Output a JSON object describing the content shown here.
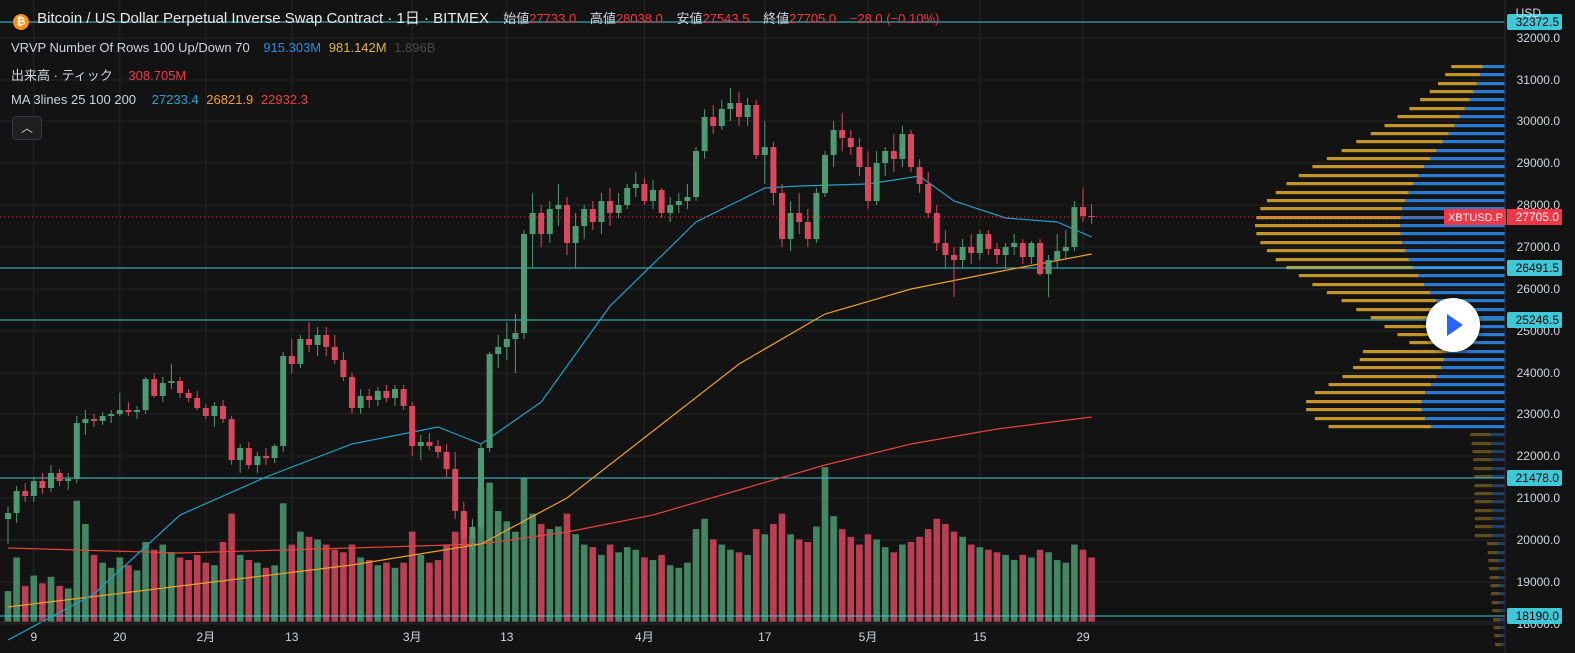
{
  "header": {
    "title": "Bitcoin / US Dollar Perpetual Inverse Swap Contract · 1日 · BITMEX",
    "open_label": "始値",
    "open": "27733.0",
    "high_label": "高値",
    "high": "28038.0",
    "low_label": "安値",
    "low": "27543.5",
    "close_label": "終値",
    "close": "27705.0",
    "change": "−28.0 (−0.10%)"
  },
  "indicators": {
    "vrvp": {
      "name": "VRVP Number Of Rows 100 Up/Down 70",
      "v1": "915.303M",
      "v2": "981.142M",
      "v3": "1.896B"
    },
    "volume": {
      "name": "出来高 · ティック",
      "value": "308.705M"
    },
    "ma": {
      "name": "MA 3lines 25 100 200",
      "v25": "27233.4",
      "v100": "26821.9",
      "v200": "22932.3"
    }
  },
  "axis": {
    "currency": "USD",
    "price_ticks": [
      "32000.0",
      "31000.0",
      "30000.0",
      "29000.0",
      "28000.0",
      "27000.0",
      "26000.0",
      "25000.0",
      "24000.0",
      "23000.0",
      "22000.0",
      "21000.0",
      "20000.0",
      "19000.0",
      "18000.0"
    ],
    "time_ticks": [
      "9",
      "20",
      "2月",
      "13",
      "3月",
      "13",
      "4月",
      "17",
      "5月",
      "15",
      "29"
    ],
    "current_price_symbol": "XBTUSD.P",
    "current_price": "27705.0",
    "horizontal_lines": [
      "32372.5",
      "26491.5",
      "25246.5",
      "21478.0",
      "18190.0"
    ]
  },
  "colors": {
    "up": "#4e9a72",
    "down": "#d9485e",
    "ma25": "#1fa2c9",
    "ma100": "#f0a02c",
    "ma200": "#e8433a",
    "hline": "#3fc8d8",
    "vpUp": "#2a7bd4",
    "vpDown": "#c4962a"
  },
  "chart_data": {
    "type": "candlestick",
    "title": "Bitcoin / US Dollar Perpetual Inverse Swap Contract · 1日 · BITMEX",
    "ylabel": "USD",
    "ylim": [
      17300,
      32900
    ],
    "horizontal_lines": [
      32372.5,
      26491.5,
      25246.5,
      21478.0,
      18190.0
    ],
    "x_ticks": [
      "9",
      "20",
      "2月",
      "13",
      "3月",
      "13",
      "4月",
      "17",
      "5月",
      "15",
      "29"
    ],
    "candles": [
      [
        20500,
        20800,
        19900,
        20650,
        120
      ],
      [
        20650,
        21300,
        20400,
        21180,
        250
      ],
      [
        21180,
        21350,
        20900,
        21050,
        140
      ],
      [
        21050,
        21500,
        20900,
        21400,
        180
      ],
      [
        21400,
        21600,
        21100,
        21250,
        150
      ],
      [
        21250,
        21800,
        21150,
        21600,
        175
      ],
      [
        21600,
        21700,
        21300,
        21400,
        140
      ],
      [
        21400,
        21600,
        21200,
        21450,
        130
      ],
      [
        21450,
        22950,
        21350,
        22800,
        470
      ],
      [
        22800,
        23100,
        22500,
        22900,
        380
      ],
      [
        22900,
        23000,
        22700,
        22850,
        260
      ],
      [
        22850,
        23050,
        22750,
        22950,
        230
      ],
      [
        22950,
        23100,
        22800,
        23000,
        210
      ],
      [
        23000,
        23500,
        22950,
        23100,
        250
      ],
      [
        23100,
        23300,
        22950,
        23050,
        220
      ],
      [
        23050,
        23200,
        22900,
        23100,
        200
      ],
      [
        23100,
        23900,
        23000,
        23850,
        310
      ],
      [
        23850,
        24000,
        23400,
        23450,
        280
      ],
      [
        23450,
        23900,
        23300,
        23750,
        300
      ],
      [
        23750,
        24200,
        23600,
        23800,
        270
      ],
      [
        23800,
        23900,
        23400,
        23500,
        250
      ],
      [
        23500,
        23600,
        23300,
        23400,
        240
      ],
      [
        23400,
        23550,
        23100,
        23150,
        260
      ],
      [
        23150,
        23250,
        22900,
        22950,
        230
      ],
      [
        22950,
        23300,
        22700,
        23200,
        220
      ],
      [
        23200,
        23350,
        22800,
        22900,
        310
      ],
      [
        22900,
        22950,
        21800,
        21900,
        420
      ],
      [
        21900,
        22300,
        21600,
        22200,
        260
      ],
      [
        22200,
        22350,
        21700,
        21800,
        240
      ],
      [
        21800,
        22100,
        21600,
        22000,
        230
      ],
      [
        22000,
        22200,
        21800,
        21950,
        210
      ],
      [
        21950,
        22300,
        21850,
        22250,
        220
      ],
      [
        22250,
        24500,
        22100,
        24400,
        460
      ],
      [
        24400,
        24800,
        24000,
        24200,
        300
      ],
      [
        24200,
        24900,
        24100,
        24800,
        350
      ],
      [
        24800,
        25200,
        24500,
        24650,
        330
      ],
      [
        24650,
        25100,
        24400,
        24900,
        320
      ],
      [
        24900,
        25100,
        24400,
        24600,
        300
      ],
      [
        24600,
        24900,
        24200,
        24300,
        280
      ],
      [
        24300,
        24500,
        23800,
        23900,
        270
      ],
      [
        23900,
        24000,
        23000,
        23150,
        300
      ],
      [
        23150,
        23600,
        23000,
        23450,
        250
      ],
      [
        23450,
        23600,
        23150,
        23350,
        240
      ],
      [
        23350,
        23650,
        23200,
        23550,
        220
      ],
      [
        23550,
        23700,
        23300,
        23400,
        230
      ],
      [
        23400,
        23700,
        23200,
        23600,
        210
      ],
      [
        23600,
        23700,
        23100,
        23200,
        230
      ],
      [
        23200,
        23300,
        22000,
        22250,
        350
      ],
      [
        22250,
        22500,
        21900,
        22350,
        260
      ],
      [
        22350,
        22550,
        22150,
        22250,
        230
      ],
      [
        22250,
        22400,
        21950,
        22100,
        240
      ],
      [
        22100,
        22300,
        21500,
        21700,
        300
      ],
      [
        21700,
        22100,
        20500,
        20700,
        350
      ],
      [
        20700,
        20900,
        19600,
        20050,
        400
      ],
      [
        20050,
        20500,
        19700,
        20300,
        330
      ],
      [
        20300,
        22300,
        20200,
        22200,
        520
      ],
      [
        22200,
        24500,
        22100,
        24450,
        540
      ],
      [
        24450,
        24900,
        24100,
        24600,
        430
      ],
      [
        24600,
        25200,
        24300,
        24800,
        390
      ],
      [
        24800,
        25400,
        24000,
        24950,
        350
      ],
      [
        24950,
        27400,
        24800,
        27300,
        560
      ],
      [
        27300,
        28300,
        26500,
        27800,
        420
      ],
      [
        27800,
        28000,
        27000,
        27300,
        380
      ],
      [
        27300,
        28100,
        27100,
        27900,
        360
      ],
      [
        27900,
        28500,
        27500,
        28000,
        370
      ],
      [
        28000,
        28200,
        26800,
        27100,
        420
      ],
      [
        27100,
        27800,
        26500,
        27500,
        340
      ],
      [
        27500,
        28000,
        27200,
        27900,
        300
      ],
      [
        27900,
        28100,
        27400,
        27600,
        290
      ],
      [
        27600,
        28300,
        27300,
        28100,
        260
      ],
      [
        28100,
        28400,
        27500,
        27800,
        300
      ],
      [
        27800,
        28300,
        27700,
        28000,
        270
      ],
      [
        28000,
        28500,
        27900,
        28400,
        290
      ],
      [
        28400,
        28800,
        28200,
        28500,
        280
      ],
      [
        28500,
        28650,
        28000,
        28100,
        250
      ],
      [
        28100,
        28600,
        27900,
        28350,
        240
      ],
      [
        28350,
        28400,
        27700,
        27800,
        260
      ],
      [
        27800,
        28200,
        27600,
        28000,
        220
      ],
      [
        28000,
        28300,
        27800,
        28100,
        210
      ],
      [
        28100,
        28500,
        27900,
        28200,
        230
      ],
      [
        28200,
        29400,
        28100,
        29300,
        360
      ],
      [
        29300,
        30300,
        29100,
        30100,
        400
      ],
      [
        30100,
        30400,
        29700,
        29900,
        320
      ],
      [
        29900,
        30500,
        29800,
        30300,
        300
      ],
      [
        30300,
        30800,
        30000,
        30450,
        280
      ],
      [
        30450,
        30700,
        29900,
        30100,
        270
      ],
      [
        30100,
        30550,
        29900,
        30400,
        260
      ],
      [
        30400,
        30500,
        29100,
        29200,
        360
      ],
      [
        29200,
        30000,
        28500,
        29400,
        340
      ],
      [
        29400,
        29500,
        28000,
        28300,
        380
      ],
      [
        28300,
        28500,
        27000,
        27200,
        420
      ],
      [
        27200,
        28100,
        26900,
        27800,
        340
      ],
      [
        27800,
        28300,
        27300,
        27600,
        320
      ],
      [
        27600,
        27900,
        27000,
        27200,
        310
      ],
      [
        27200,
        28400,
        27100,
        28300,
        370
      ],
      [
        28300,
        29300,
        28200,
        29200,
        600
      ],
      [
        29200,
        30000,
        28900,
        29800,
        410
      ],
      [
        29800,
        30200,
        29300,
        29600,
        360
      ],
      [
        29600,
        29800,
        29200,
        29400,
        330
      ],
      [
        29400,
        29600,
        28700,
        28900,
        300
      ],
      [
        28900,
        29300,
        27900,
        28100,
        340
      ],
      [
        28100,
        29300,
        28000,
        29000,
        320
      ],
      [
        29000,
        29400,
        28700,
        29300,
        290
      ],
      [
        29300,
        29700,
        28800,
        29100,
        270
      ],
      [
        29100,
        29900,
        28900,
        29700,
        300
      ],
      [
        29700,
        29800,
        28800,
        28900,
        310
      ],
      [
        28900,
        29100,
        28300,
        28500,
        330
      ],
      [
        28500,
        28800,
        27700,
        27800,
        360
      ],
      [
        27800,
        28000,
        26900,
        27100,
        400
      ],
      [
        27100,
        27400,
        26500,
        26800,
        380
      ],
      [
        26800,
        27000,
        25800,
        26700,
        350
      ],
      [
        26700,
        27200,
        26500,
        27000,
        330
      ],
      [
        27000,
        27300,
        26600,
        26850,
        300
      ],
      [
        26850,
        27400,
        26700,
        27300,
        290
      ],
      [
        27300,
        27400,
        26800,
        26950,
        280
      ],
      [
        26950,
        27100,
        26600,
        26800,
        270
      ],
      [
        26800,
        27100,
        26500,
        27000,
        260
      ],
      [
        27000,
        27300,
        26800,
        27100,
        240
      ],
      [
        27100,
        27200,
        26600,
        26750,
        260
      ],
      [
        26750,
        27150,
        26600,
        27100,
        250
      ],
      [
        27100,
        27200,
        26300,
        26350,
        280
      ],
      [
        26350,
        26800,
        25800,
        26700,
        270
      ],
      [
        26700,
        27300,
        26500,
        26900,
        240
      ],
      [
        26900,
        27400,
        26700,
        27000,
        230
      ],
      [
        27000,
        28100,
        26900,
        27950,
        300
      ],
      [
        27950,
        28400,
        27600,
        27733,
        280
      ],
      [
        27733,
        28038,
        27543.5,
        27705,
        250
      ]
    ],
    "ma25": [
      [
        0,
        17600
      ],
      [
        10,
        18700
      ],
      [
        20,
        20600
      ],
      [
        30,
        21500
      ],
      [
        40,
        22300
      ],
      [
        50,
        22700
      ],
      [
        55,
        22300
      ],
      [
        62,
        23300
      ],
      [
        70,
        25600
      ],
      [
        80,
        27600
      ],
      [
        88,
        28400
      ],
      [
        92,
        28450
      ],
      [
        100,
        28500
      ],
      [
        106,
        28700
      ],
      [
        110,
        28100
      ],
      [
        116,
        27700
      ],
      [
        122,
        27600
      ],
      [
        126,
        27233.4
      ]
    ],
    "ma100": [
      [
        0,
        18400
      ],
      [
        20,
        18900
      ],
      [
        40,
        19400
      ],
      [
        55,
        19900
      ],
      [
        65,
        21000
      ],
      [
        75,
        22600
      ],
      [
        85,
        24200
      ],
      [
        95,
        25400
      ],
      [
        105,
        26000
      ],
      [
        115,
        26400
      ],
      [
        126,
        26821.9
      ]
    ],
    "ma200": [
      [
        0,
        19800
      ],
      [
        20,
        19700
      ],
      [
        40,
        19800
      ],
      [
        55,
        19900
      ],
      [
        65,
        20200
      ],
      [
        75,
        20600
      ],
      [
        85,
        21200
      ],
      [
        95,
        21800
      ],
      [
        105,
        22300
      ],
      [
        115,
        22650
      ],
      [
        126,
        22932.3
      ]
    ]
  }
}
